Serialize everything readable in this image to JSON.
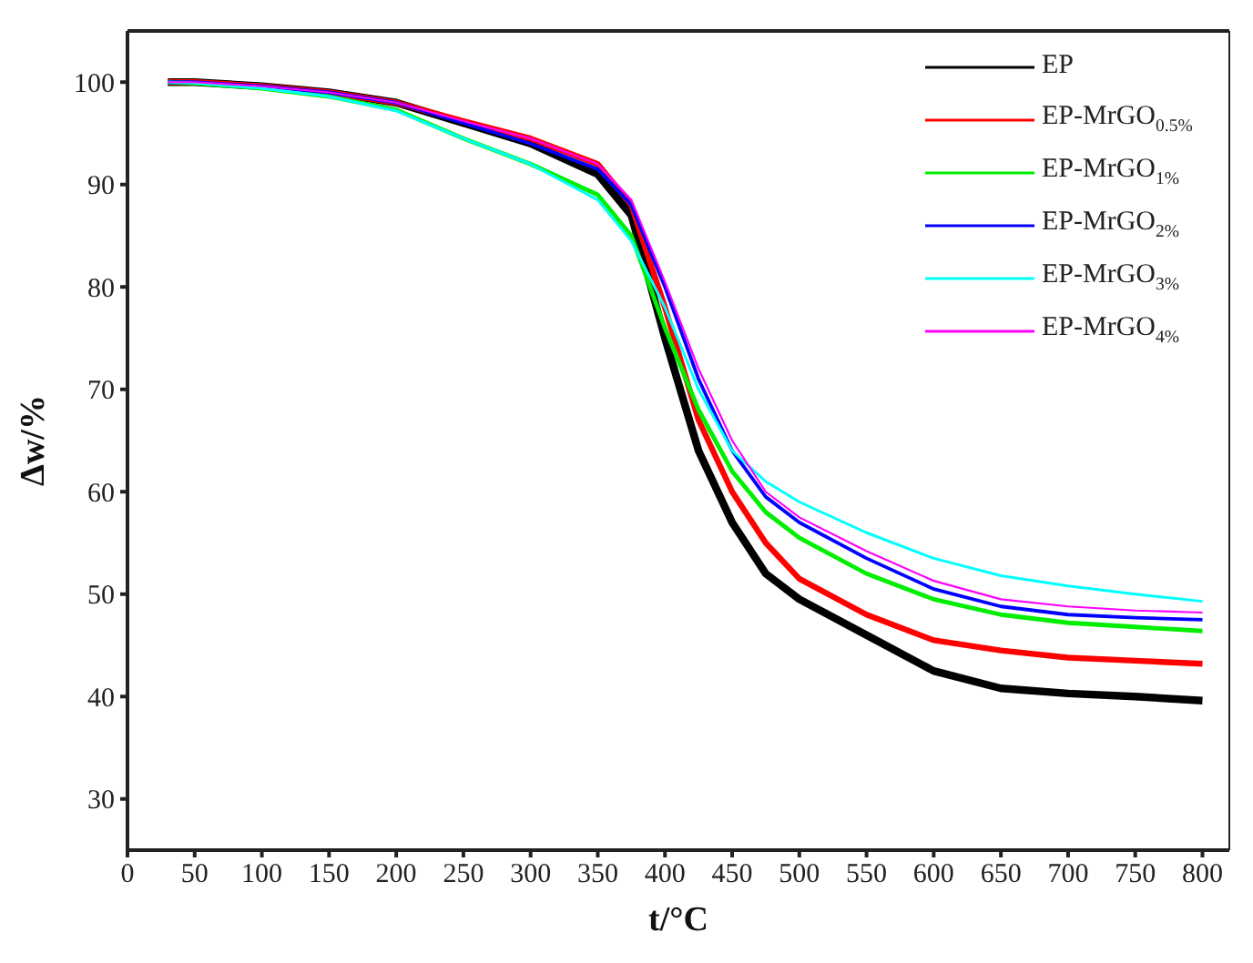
{
  "chart_data": {
    "type": "line",
    "xlabel": "t/°C",
    "ylabel": "Δw/%",
    "x": [
      30,
      50,
      100,
      150,
      200,
      250,
      300,
      350,
      375,
      400,
      425,
      450,
      475,
      500,
      550,
      600,
      650,
      700,
      750,
      800
    ],
    "series": [
      {
        "name": "EP",
        "color": "#000000",
        "values": [
          100,
          100,
          99.6,
          99,
          98,
          96,
          94,
          91,
          87,
          75,
          64,
          57,
          52,
          49.5,
          46,
          42.5,
          40.8,
          40.3,
          40,
          39.6
        ]
      },
      {
        "name": "EP-MrGO$_{0.5%}$",
        "color": "#ff0000",
        "values": [
          100,
          100,
          99.6,
          99,
          98,
          96.2,
          94.5,
          92,
          88,
          78,
          67,
          60,
          55,
          51.5,
          48,
          45.5,
          44.5,
          43.8,
          43.5,
          43.2
        ]
      },
      {
        "name": "EP-MrGO$_{1%}$",
        "color": "#00ee00",
        "values": [
          100,
          99.9,
          99.4,
          98.6,
          97.3,
          94.5,
          92,
          89,
          85,
          76,
          68,
          62,
          58,
          55.5,
          52,
          49.5,
          48,
          47.2,
          46.8,
          46.4
        ]
      },
      {
        "name": "EP-MrGO$_{2%}$",
        "color": "#0000ff",
        "values": [
          100,
          100,
          99.6,
          99,
          98,
          96,
          94,
          91.5,
          88,
          80,
          71,
          64,
          59.5,
          57,
          53.5,
          50.5,
          48.8,
          48,
          47.7,
          47.5
        ]
      },
      {
        "name": "EP-MrGO$_{3%}$",
        "color": "#00ffff",
        "values": [
          100,
          99.9,
          99.4,
          98.6,
          97.2,
          94.5,
          92,
          88.5,
          84.5,
          78,
          70,
          64,
          61,
          59,
          56,
          53.5,
          51.8,
          50.8,
          50,
          49.3
        ]
      },
      {
        "name": "EP-MrGO$_{4%}$",
        "color": "#ff00ff",
        "values": [
          100,
          100,
          99.6,
          99,
          98,
          96.2,
          94.5,
          92,
          88.5,
          80.5,
          72,
          65,
          60,
          57.5,
          54.2,
          51.3,
          49.5,
          48.8,
          48.4,
          48.2
        ]
      }
    ],
    "xlim": [
      0,
      820
    ],
    "xticks": [
      0,
      50,
      100,
      150,
      200,
      250,
      300,
      350,
      400,
      450,
      500,
      550,
      600,
      650,
      700,
      750,
      800
    ],
    "ylim": [
      25,
      105
    ],
    "yticks": [
      30,
      40,
      50,
      60,
      70,
      80,
      90,
      100
    ],
    "grid": false,
    "legend": "top right",
    "marker": "none",
    "line_style": "solid"
  }
}
